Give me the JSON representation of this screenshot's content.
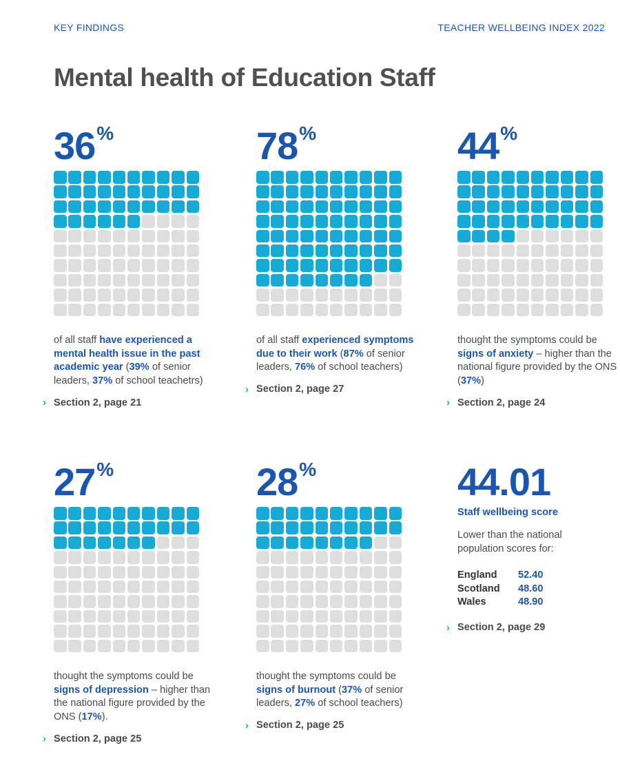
{
  "header": {
    "left": "KEY FINDINGS",
    "right": "TEACHER WELLBEING INDEX 2022"
  },
  "title": "Mental health of Education Staff",
  "colors": {
    "accent": "#1a56b0",
    "filled_square": "#17aad7",
    "empty_square": "#dedede",
    "text": "#4a4a4a"
  },
  "panels": [
    {
      "value": "36",
      "suffix": "%",
      "filled_squares": 36,
      "description": [
        {
          "t": "of all staff "
        },
        {
          "t": "have experienced a mental health issue in the past academic year",
          "b": true
        },
        {
          "t": " ("
        },
        {
          "t": "39%",
          "b": true
        },
        {
          "t": " of senior leaders, "
        },
        {
          "t": "37%",
          "b": true
        },
        {
          "t": " of school teachetrs)"
        }
      ],
      "link": "Section 2, page 21"
    },
    {
      "value": "78",
      "suffix": "%",
      "filled_squares": 78,
      "description": [
        {
          "t": "of all staff "
        },
        {
          "t": "experienced symptoms due to their work",
          "b": true
        },
        {
          "t": " ("
        },
        {
          "t": "87%",
          "b": true
        },
        {
          "t": " of senior leaders, "
        },
        {
          "t": "76%",
          "b": true
        },
        {
          "t": " of school teachers)"
        }
      ],
      "link": "Section 2, page 27"
    },
    {
      "value": "44",
      "suffix": "%",
      "filled_squares": 44,
      "description": [
        {
          "t": "thought the symptoms could be "
        },
        {
          "t": "signs of anxiety",
          "b": true
        },
        {
          "t": " – higher than the national figure provided by the ONS ("
        },
        {
          "t": "37%",
          "b": true
        },
        {
          "t": ")"
        }
      ],
      "link": "Section 2, page 24"
    },
    {
      "value": "27",
      "suffix": "%",
      "filled_squares": 27,
      "description": [
        {
          "t": "thought the symptoms could be "
        },
        {
          "t": "signs of depression",
          "b": true
        },
        {
          "t": " – higher than the national figure provided by the ONS ("
        },
        {
          "t": "17%",
          "b": true
        },
        {
          "t": ")."
        }
      ],
      "link": "Section 2, page 25"
    },
    {
      "value": "28",
      "suffix": "%",
      "filled_squares": 28,
      "description": [
        {
          "t": "thought the symptoms could be "
        },
        {
          "t": "signs of burnout",
          "b": true
        },
        {
          "t": " ("
        },
        {
          "t": "37%",
          "b": true
        },
        {
          "t": " of senior leaders, "
        },
        {
          "t": "27%",
          "b": true
        },
        {
          "t": " of school teachers)"
        }
      ],
      "link": "Section 2, page 25"
    }
  ],
  "wellbeing": {
    "value": "44.01",
    "label": "Staff wellbeing score",
    "note": "Lower than the national population scores for:",
    "scores": [
      {
        "country": "England",
        "score": "52.40"
      },
      {
        "country": "Scotland",
        "score": "48.60"
      },
      {
        "country": "Wales",
        "score": "48.90"
      }
    ],
    "link": "Section 2, page 29"
  }
}
